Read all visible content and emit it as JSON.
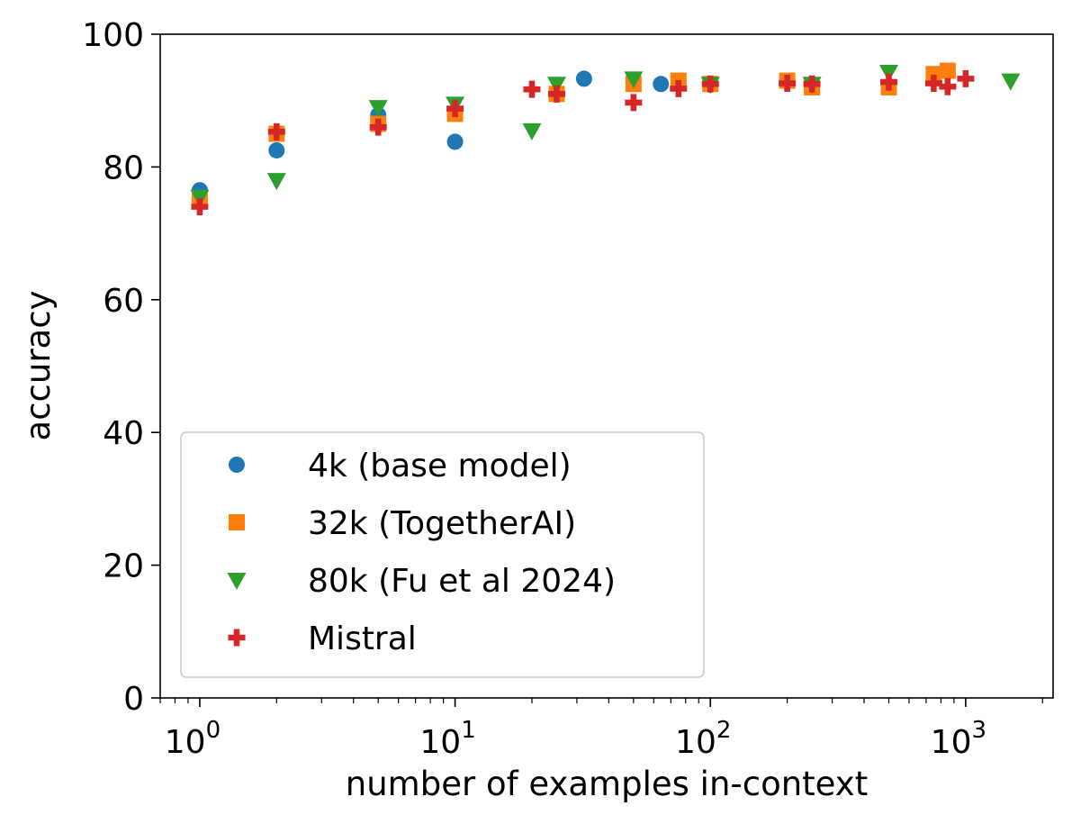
{
  "chart_data": {
    "type": "scatter",
    "title": "",
    "xlabel": "number of examples in-context",
    "ylabel": "accuracy",
    "xscale": "log",
    "xlim": [
      0.7,
      2200
    ],
    "ylim": [
      0,
      100
    ],
    "grid": false,
    "legend_position": "lower-left",
    "yticks": [
      0,
      20,
      40,
      60,
      80,
      100
    ],
    "ytick_labels": [
      "0",
      "20",
      "40",
      "60",
      "80",
      "100"
    ],
    "xticks": [
      {
        "value": 1,
        "base": "10",
        "exp": "0"
      },
      {
        "value": 10,
        "base": "10",
        "exp": "1"
      },
      {
        "value": 100,
        "base": "10",
        "exp": "2"
      },
      {
        "value": 1000,
        "base": "10",
        "exp": "3"
      }
    ],
    "series": [
      {
        "name": "4k (base model)",
        "marker": "circle",
        "color": "#1f77b4",
        "points": [
          [
            1,
            76.5
          ],
          [
            2,
            82.5
          ],
          [
            5,
            87.8
          ],
          [
            10,
            83.8
          ],
          [
            32,
            93.3
          ],
          [
            64,
            92.5
          ],
          [
            100,
            92.5
          ]
        ]
      },
      {
        "name": "32k (TogetherAI)",
        "marker": "square",
        "color": "#ff7f0e",
        "points": [
          [
            1,
            75
          ],
          [
            2,
            85
          ],
          [
            5,
            86.5
          ],
          [
            10,
            88
          ],
          [
            25,
            91
          ],
          [
            50,
            92.5
          ],
          [
            75,
            93
          ],
          [
            100,
            92.5
          ],
          [
            200,
            93
          ],
          [
            250,
            92
          ],
          [
            500,
            92
          ],
          [
            750,
            94
          ],
          [
            850,
            94.5
          ]
        ]
      },
      {
        "name": "80k (Fu et al 2024)",
        "marker": "triangle-down",
        "color": "#2ca02c",
        "points": [
          [
            1,
            75.5
          ],
          [
            2,
            78
          ],
          [
            5,
            89
          ],
          [
            10,
            89.5
          ],
          [
            20,
            85.5
          ],
          [
            25,
            92.5
          ],
          [
            50,
            93.3
          ],
          [
            100,
            92.5
          ],
          [
            250,
            92.5
          ],
          [
            500,
            94.3
          ],
          [
            1500,
            93
          ]
        ]
      },
      {
        "name": "Mistral",
        "marker": "plus",
        "color": "#d62728",
        "points": [
          [
            1,
            74
          ],
          [
            2,
            85.3
          ],
          [
            5,
            86
          ],
          [
            10,
            88.8
          ],
          [
            20,
            91.7
          ],
          [
            25,
            91
          ],
          [
            50,
            89.7
          ],
          [
            75,
            91.8
          ],
          [
            100,
            92.5
          ],
          [
            200,
            92.6
          ],
          [
            250,
            92.5
          ],
          [
            500,
            92.8
          ],
          [
            750,
            92.6
          ],
          [
            850,
            92.1
          ],
          [
            1000,
            93.3
          ]
        ]
      }
    ]
  }
}
